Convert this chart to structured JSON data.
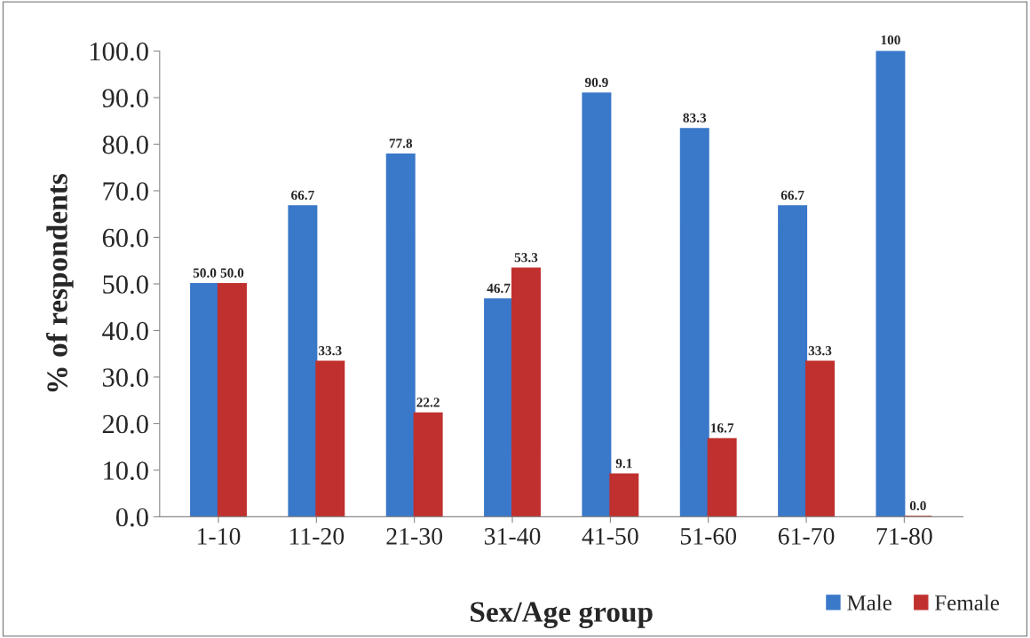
{
  "chart_data": {
    "type": "bar",
    "xlabel": "Sex/Age group",
    "ylabel": "% of respondents",
    "categories": [
      "1-10",
      "11-20",
      "21-30",
      "31-40",
      "41-50",
      "51-60",
      "61-70",
      "71-80"
    ],
    "series": [
      {
        "name": "Male",
        "color": "#3a78c9",
        "values": [
          50.0,
          66.7,
          77.8,
          46.7,
          90.9,
          83.3,
          66.7,
          100
        ],
        "value_labels": [
          "50.0",
          "66.7",
          "77.8",
          "46.7",
          "90.9",
          "83.3",
          "66.7",
          "100"
        ]
      },
      {
        "name": "Female",
        "color": "#c0302e",
        "values": [
          50.0,
          33.3,
          22.2,
          53.3,
          9.1,
          16.7,
          33.3,
          0.0
        ],
        "value_labels": [
          "50.0",
          "33.3",
          "22.2",
          "53.3",
          "9.1",
          "16.7",
          "33.3",
          "0.0"
        ]
      }
    ],
    "ylim": [
      0,
      100
    ],
    "yticks": [
      {
        "value": 0,
        "label": "0.0"
      },
      {
        "value": 10,
        "label": "10.0"
      },
      {
        "value": 20,
        "label": "20.0"
      },
      {
        "value": 30,
        "label": "30.0"
      },
      {
        "value": 40,
        "label": "40.0"
      },
      {
        "value": 50,
        "label": "50.0"
      },
      {
        "value": 60,
        "label": "60.0"
      },
      {
        "value": 70,
        "label": "70.0"
      },
      {
        "value": 80,
        "label": "80.0"
      },
      {
        "value": 90,
        "label": "90.0"
      },
      {
        "value": 100,
        "label": "100.0"
      }
    ],
    "grid": false,
    "legend": "bottom right"
  }
}
